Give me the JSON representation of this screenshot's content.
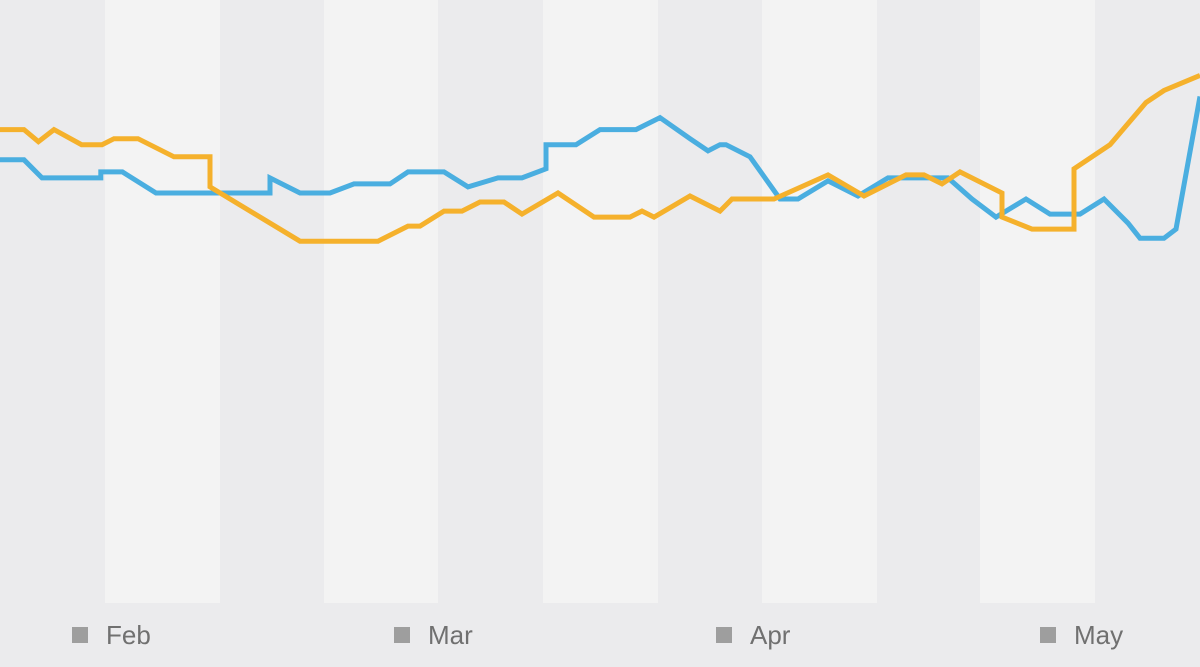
{
  "chart_data": {
    "type": "line",
    "x_ticks": [
      "Feb",
      "Mar",
      "Apr",
      "May"
    ],
    "grid": false,
    "legend": "none",
    "colors": {
      "background": "#ebebed",
      "band_light": "#f3f3f3",
      "band_dark": "#ebebed",
      "axis_marker": "#9e9e9e",
      "series_blue": "#4aaee0",
      "series_orange": "#f5b12c"
    },
    "series": [
      {
        "color": "#4aaee0",
        "x": [
          0,
          2,
          3.5,
          8.4,
          8.4,
          10.2,
          13,
          22.5,
          22.5,
          25,
          27.5,
          29.5,
          32.5,
          34,
          37,
          39,
          41.5,
          43.5,
          45.5,
          45.5,
          48,
          50,
          53,
          55,
          57.5,
          59,
          60,
          60.5,
          62.5,
          65,
          66.5,
          69,
          71.5,
          74,
          76.5,
          79,
          81,
          83,
          85.5,
          87.5,
          90,
          92,
          94,
          95,
          97,
          98,
          100
        ],
        "y": [
          73.5,
          73.5,
          70.5,
          70.5,
          71.5,
          71.5,
          68,
          68,
          70.5,
          68,
          68,
          69.5,
          69.5,
          71.5,
          71.5,
          69,
          70.5,
          70.5,
          72,
          76,
          76,
          78.5,
          78.5,
          80.5,
          77,
          75,
          76,
          76,
          74,
          67,
          67,
          70,
          67.5,
          70.5,
          70.5,
          70.5,
          67,
          64,
          67,
          64.5,
          64.5,
          67,
          63,
          60.5,
          60.5,
          62,
          84
        ]
      },
      {
        "color": "#f5b12c",
        "x": [
          0,
          2,
          3.2,
          4.5,
          6.8,
          8.5,
          9.5,
          11.5,
          14.5,
          17.5,
          17.5,
          25,
          31.5,
          34,
          35,
          37,
          38.5,
          40,
          42,
          43.5,
          46.5,
          49.5,
          52.5,
          53.5,
          54.5,
          57.5,
          60,
          61,
          64.5,
          69,
          72,
          75.5,
          77,
          78.5,
          80,
          83.5,
          83.5,
          86,
          89.5,
          89.5,
          92.5,
          95.5,
          97,
          100
        ],
        "y": [
          78.5,
          78.5,
          76.5,
          78.5,
          76,
          76,
          77,
          77,
          74,
          74,
          69,
          60,
          60,
          62.5,
          62.5,
          65,
          65,
          66.5,
          66.5,
          64.5,
          68,
          64,
          64,
          65,
          64,
          67.5,
          65,
          67,
          67,
          71,
          67.5,
          71,
          71,
          69.5,
          71.5,
          68,
          64,
          62,
          62,
          72,
          76,
          83,
          85,
          87.5
        ]
      }
    ]
  }
}
